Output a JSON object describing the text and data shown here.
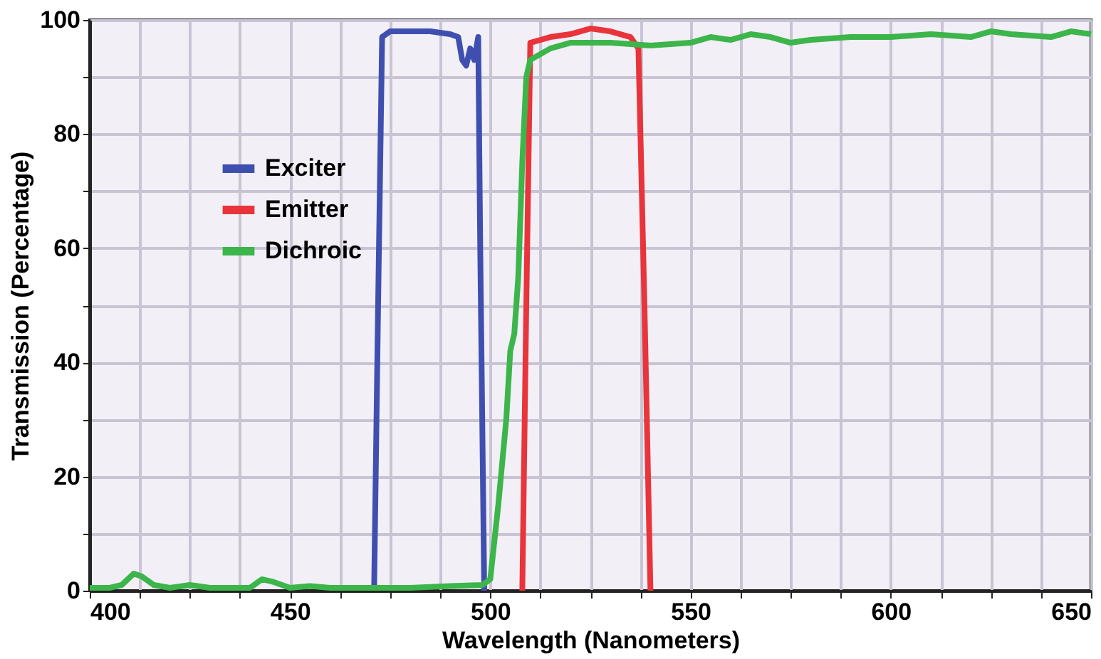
{
  "chart_data": {
    "type": "line",
    "xlabel": "Wavelength (Nanometers)",
    "ylabel": "Transmission (Percentage)",
    "xlim": [
      400,
      650
    ],
    "ylim": [
      0,
      100
    ],
    "xticks": [
      400,
      {
        "value": 412.5,
        "label": null
      },
      {
        "value": 425,
        "label": null
      },
      {
        "value": 437.5,
        "label": null
      },
      450,
      {
        "value": 462.5,
        "label": null
      },
      {
        "value": 475,
        "label": null
      },
      {
        "value": 487.5,
        "label": null
      },
      500,
      {
        "value": 512.5,
        "label": null
      },
      {
        "value": 525,
        "label": null
      },
      {
        "value": 537.5,
        "label": null
      },
      550,
      {
        "value": 562.5,
        "label": null
      },
      {
        "value": 575,
        "label": null
      },
      {
        "value": 587.5,
        "label": null
      },
      600,
      {
        "value": 612.5,
        "label": null
      },
      {
        "value": 625,
        "label": null
      },
      {
        "value": 637.5,
        "label": null
      },
      650
    ],
    "yticks": [
      0,
      {
        "value": 10,
        "label": null
      },
      20,
      {
        "value": 30,
        "label": null
      },
      40,
      {
        "value": 50,
        "label": null
      },
      60,
      {
        "value": 70,
        "label": null
      },
      80,
      {
        "value": 90,
        "label": null
      },
      100
    ],
    "grid": true,
    "legend": "top left",
    "marker": "none",
    "line_style": "solid",
    "series": [
      {
        "name": "Exciter",
        "color": "#3f4fb0",
        "x": [
          471,
          472,
          473,
          475,
          480,
          485,
          490,
          492,
          493,
          494,
          495,
          496,
          497,
          497.5,
          498.5
        ],
        "values": [
          0,
          50,
          97,
          98,
          98,
          98,
          97.5,
          97,
          93,
          92,
          95,
          93,
          97,
          60,
          0
        ]
      },
      {
        "name": "Emitter",
        "color": "#e8343a",
        "x": [
          508,
          509,
          510,
          515,
          520,
          525,
          530,
          535,
          537,
          538.5,
          540
        ],
        "values": [
          0,
          50,
          96,
          97,
          97.5,
          98.5,
          98,
          97,
          95,
          50,
          0
        ]
      },
      {
        "name": "Dichroic",
        "color": "#3cb54a",
        "x": [
          400,
          405,
          408,
          411,
          413,
          416,
          420,
          425,
          430,
          435,
          440,
          443,
          446,
          450,
          455,
          460,
          465,
          470,
          480,
          490,
          498,
          500,
          502,
          504,
          505,
          506,
          507,
          508,
          509,
          510,
          515,
          520,
          530,
          540,
          550,
          555,
          560,
          565,
          570,
          575,
          580,
          590,
          600,
          610,
          620,
          625,
          630,
          640,
          645,
          650
        ],
        "values": [
          0.5,
          0.5,
          1,
          3,
          2.5,
          1,
          0.5,
          1,
          0.5,
          0.5,
          0.5,
          2,
          1.5,
          0.5,
          0.8,
          0.5,
          0.5,
          0.5,
          0.5,
          0.8,
          1,
          2,
          15,
          30,
          42,
          45,
          55,
          75,
          90,
          93,
          95,
          96,
          96,
          95.5,
          96,
          97,
          96.5,
          97.5,
          97,
          96,
          96.5,
          97,
          97,
          97.5,
          97,
          98,
          97.5,
          97,
          98,
          97.5
        ]
      }
    ]
  }
}
